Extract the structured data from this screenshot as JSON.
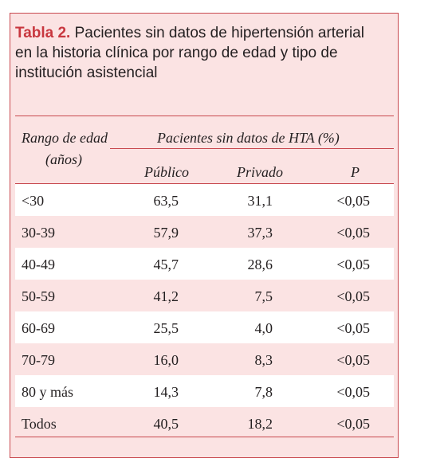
{
  "title": {
    "label": "Tabla 2.",
    "lines": [
      "Pacientes sin datos de hipertensión arterial",
      "en la historia clínica por rango de edad y tipo de",
      "institución asistencial"
    ]
  },
  "table": {
    "header": {
      "row_label": [
        "Rango de edad",
        "(años)"
      ],
      "group": "Pacientes sin datos de HTA (%)",
      "columns": [
        "Público",
        "Privado",
        "P"
      ]
    },
    "rows": [
      [
        "<30",
        "63,5",
        "31,1",
        "<0,05"
      ],
      [
        "30-39",
        "57,9",
        "37,3",
        "<0,05"
      ],
      [
        "40-49",
        "45,7",
        "28,6",
        "<0,05"
      ],
      [
        "50-59",
        "41,2",
        "7,5",
        "<0,05"
      ],
      [
        "60-69",
        "25,5",
        "4,0",
        "<0,05"
      ],
      [
        "70-79",
        "16,0",
        "8,3",
        "<0,05"
      ],
      [
        "80 y más",
        "14,3",
        "7,8",
        "<0,05"
      ],
      [
        "Todos",
        "40,5",
        "18,2",
        "<0,05"
      ]
    ]
  }
}
